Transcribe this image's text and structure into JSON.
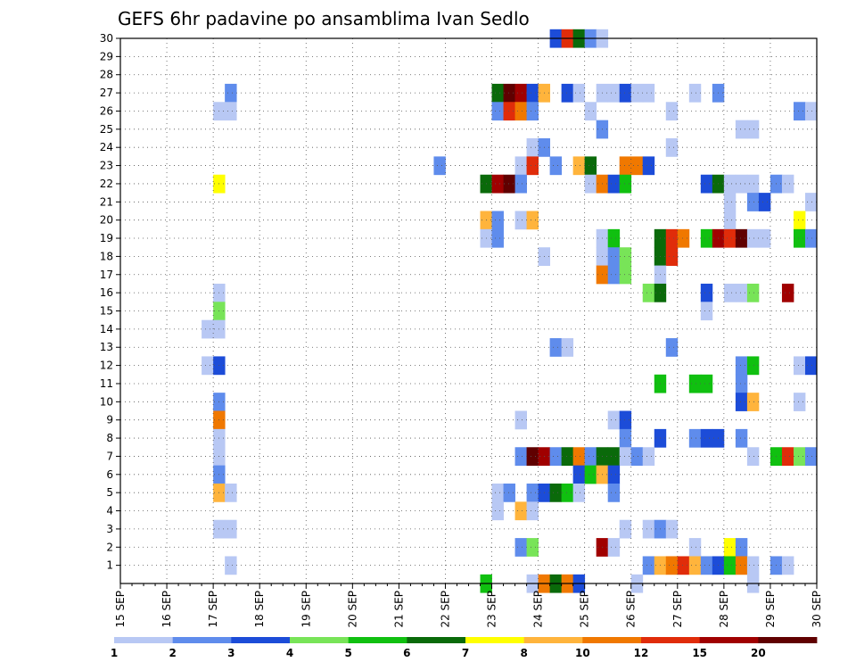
{
  "chart_data": {
    "type": "heatmap",
    "title": "GEFS 6hr padavine po ansamblima Ivan Sedlo",
    "xlabel": "",
    "ylabel": "",
    "x_ticks": [
      "15 SEP",
      "16 SEP",
      "17 SEP",
      "18 SEP",
      "19 SEP",
      "20 SEP",
      "21 SEP",
      "22 SEP",
      "23 SEP",
      "24 SEP",
      "25 SEP",
      "26 SEP",
      "27 SEP",
      "28 SEP",
      "29 SEP",
      "30 SEP"
    ],
    "y_ticks": [
      1,
      2,
      3,
      4,
      5,
      6,
      7,
      8,
      9,
      10,
      11,
      12,
      13,
      14,
      15,
      16,
      17,
      18,
      19,
      20,
      21,
      22,
      23,
      24,
      25,
      26,
      27,
      28,
      29,
      30
    ],
    "ylim": [
      0,
      30
    ],
    "grid": true,
    "colorbar": {
      "labels": [
        "1",
        "2",
        "3",
        "4",
        "5",
        "6",
        "7",
        "8",
        "10",
        "12",
        "15",
        "20"
      ],
      "colors": [
        "#b8c8f4",
        "#5f8cec",
        "#1c4cd8",
        "#78e458",
        "#10c010",
        "#0a6a0a",
        "#ffff00",
        "#ffb43c",
        "#f07800",
        "#e02c0a",
        "#a00000",
        "#600000"
      ]
    },
    "cells": [
      [
        30,
        37,
        2
      ],
      [
        30,
        38,
        9
      ],
      [
        30,
        39,
        5
      ],
      [
        30,
        40,
        1
      ],
      [
        30,
        41,
        0
      ],
      [
        27,
        9,
        1
      ],
      [
        27,
        32,
        5
      ],
      [
        27,
        33,
        11
      ],
      [
        27,
        34,
        10
      ],
      [
        27,
        35,
        2
      ],
      [
        27,
        36,
        7
      ],
      [
        27,
        38,
        2
      ],
      [
        27,
        39,
        0
      ],
      [
        27,
        41,
        0
      ],
      [
        27,
        42,
        0
      ],
      [
        27,
        43,
        2
      ],
      [
        27,
        44,
        0
      ],
      [
        27,
        45,
        0
      ],
      [
        27,
        49,
        0
      ],
      [
        27,
        51,
        1
      ],
      [
        26,
        8,
        0
      ],
      [
        26,
        9,
        0
      ],
      [
        26,
        32,
        1
      ],
      [
        26,
        33,
        9
      ],
      [
        26,
        34,
        8
      ],
      [
        26,
        35,
        1
      ],
      [
        26,
        40,
        0
      ],
      [
        26,
        47,
        0
      ],
      [
        26,
        58,
        1
      ],
      [
        26,
        59,
        0
      ],
      [
        25,
        41,
        1
      ],
      [
        25,
        53,
        0
      ],
      [
        25,
        54,
        0
      ],
      [
        24,
        35,
        0
      ],
      [
        24,
        36,
        1
      ],
      [
        24,
        47,
        0
      ],
      [
        23,
        27,
        1
      ],
      [
        23,
        34,
        0
      ],
      [
        23,
        35,
        9
      ],
      [
        23,
        37,
        1
      ],
      [
        23,
        39,
        7
      ],
      [
        23,
        40,
        5
      ],
      [
        23,
        43,
        8
      ],
      [
        23,
        44,
        8
      ],
      [
        23,
        45,
        2
      ],
      [
        22,
        8,
        6
      ],
      [
        22,
        31,
        5
      ],
      [
        22,
        32,
        10
      ],
      [
        22,
        33,
        11
      ],
      [
        22,
        34,
        1
      ],
      [
        22,
        40,
        0
      ],
      [
        22,
        41,
        8
      ],
      [
        22,
        42,
        2
      ],
      [
        22,
        43,
        4
      ],
      [
        22,
        50,
        2
      ],
      [
        22,
        51,
        5
      ],
      [
        22,
        52,
        0
      ],
      [
        22,
        53,
        0
      ],
      [
        22,
        54,
        0
      ],
      [
        22,
        56,
        1
      ],
      [
        22,
        57,
        0
      ],
      [
        21,
        52,
        0
      ],
      [
        21,
        54,
        1
      ],
      [
        21,
        55,
        2
      ],
      [
        21,
        59,
        0
      ],
      [
        20,
        31,
        7
      ],
      [
        20,
        32,
        1
      ],
      [
        20,
        34,
        0
      ],
      [
        20,
        35,
        7
      ],
      [
        20,
        52,
        0
      ],
      [
        20,
        58,
        6
      ],
      [
        19,
        31,
        0
      ],
      [
        19,
        32,
        1
      ],
      [
        19,
        41,
        0
      ],
      [
        19,
        42,
        4
      ],
      [
        19,
        46,
        5
      ],
      [
        19,
        47,
        9
      ],
      [
        19,
        48,
        8
      ],
      [
        19,
        50,
        4
      ],
      [
        19,
        51,
        10
      ],
      [
        19,
        52,
        9
      ],
      [
        19,
        53,
        11
      ],
      [
        19,
        54,
        0
      ],
      [
        19,
        55,
        0
      ],
      [
        19,
        58,
        4
      ],
      [
        19,
        59,
        1
      ],
      [
        18,
        36,
        0
      ],
      [
        18,
        41,
        0
      ],
      [
        18,
        42,
        1
      ],
      [
        18,
        43,
        3
      ],
      [
        18,
        46,
        5
      ],
      [
        18,
        47,
        9
      ],
      [
        17,
        41,
        8
      ],
      [
        17,
        42,
        1
      ],
      [
        17,
        43,
        3
      ],
      [
        17,
        46,
        0
      ],
      [
        16,
        8,
        0
      ],
      [
        16,
        45,
        3
      ],
      [
        16,
        46,
        5
      ],
      [
        16,
        50,
        2
      ],
      [
        16,
        52,
        0
      ],
      [
        16,
        53,
        0
      ],
      [
        16,
        54,
        3
      ],
      [
        16,
        57,
        10
      ],
      [
        15,
        8,
        3
      ],
      [
        15,
        50,
        0
      ],
      [
        14,
        7,
        0
      ],
      [
        14,
        8,
        0
      ],
      [
        13,
        37,
        1
      ],
      [
        13,
        38,
        0
      ],
      [
        13,
        47,
        1
      ],
      [
        12,
        7,
        0
      ],
      [
        12,
        8,
        2
      ],
      [
        12,
        53,
        1
      ],
      [
        12,
        54,
        4
      ],
      [
        12,
        58,
        0
      ],
      [
        12,
        59,
        2
      ],
      [
        11,
        46,
        4
      ],
      [
        11,
        49,
        4
      ],
      [
        11,
        50,
        4
      ],
      [
        11,
        53,
        1
      ],
      [
        10,
        8,
        1
      ],
      [
        10,
        53,
        2
      ],
      [
        10,
        54,
        7
      ],
      [
        10,
        58,
        0
      ],
      [
        9,
        8,
        8
      ],
      [
        9,
        34,
        0
      ],
      [
        9,
        42,
        0
      ],
      [
        9,
        43,
        2
      ],
      [
        8,
        8,
        0
      ],
      [
        8,
        43,
        1
      ],
      [
        8,
        46,
        2
      ],
      [
        8,
        49,
        1
      ],
      [
        8,
        50,
        2
      ],
      [
        8,
        51,
        2
      ],
      [
        8,
        53,
        1
      ],
      [
        7,
        8,
        0
      ],
      [
        7,
        34,
        1
      ],
      [
        7,
        35,
        11
      ],
      [
        7,
        36,
        10
      ],
      [
        7,
        37,
        1
      ],
      [
        7,
        38,
        5
      ],
      [
        7,
        39,
        8
      ],
      [
        7,
        40,
        1
      ],
      [
        7,
        41,
        5
      ],
      [
        7,
        42,
        5
      ],
      [
        7,
        43,
        0
      ],
      [
        7,
        44,
        1
      ],
      [
        7,
        45,
        0
      ],
      [
        7,
        54,
        0
      ],
      [
        7,
        56,
        4
      ],
      [
        7,
        57,
        9
      ],
      [
        7,
        58,
        3
      ],
      [
        7,
        59,
        1
      ],
      [
        6,
        8,
        1
      ],
      [
        6,
        39,
        2
      ],
      [
        6,
        40,
        4
      ],
      [
        6,
        41,
        7
      ],
      [
        6,
        42,
        2
      ],
      [
        5,
        8,
        7
      ],
      [
        5,
        9,
        0
      ],
      [
        5,
        32,
        0
      ],
      [
        5,
        33,
        1
      ],
      [
        5,
        35,
        1
      ],
      [
        5,
        36,
        2
      ],
      [
        5,
        37,
        5
      ],
      [
        5,
        38,
        4
      ],
      [
        5,
        39,
        0
      ],
      [
        5,
        42,
        1
      ],
      [
        4,
        32,
        0
      ],
      [
        4,
        34,
        7
      ],
      [
        4,
        35,
        0
      ],
      [
        3,
        8,
        0
      ],
      [
        3,
        9,
        0
      ],
      [
        3,
        43,
        0
      ],
      [
        3,
        45,
        0
      ],
      [
        3,
        46,
        1
      ],
      [
        3,
        47,
        0
      ],
      [
        2,
        34,
        1
      ],
      [
        2,
        35,
        3
      ],
      [
        2,
        41,
        10
      ],
      [
        2,
        42,
        0
      ],
      [
        2,
        49,
        0
      ],
      [
        2,
        52,
        6
      ],
      [
        2,
        53,
        1
      ],
      [
        1,
        9,
        0
      ],
      [
        1,
        45,
        1
      ],
      [
        1,
        46,
        7
      ],
      [
        1,
        47,
        8
      ],
      [
        1,
        48,
        9
      ],
      [
        1,
        49,
        7
      ],
      [
        1,
        50,
        1
      ],
      [
        1,
        51,
        2
      ],
      [
        1,
        52,
        4
      ],
      [
        1,
        53,
        8
      ],
      [
        1,
        54,
        0
      ],
      [
        1,
        56,
        1
      ],
      [
        1,
        57,
        0
      ],
      [
        0,
        31,
        4
      ],
      [
        0,
        35,
        0
      ],
      [
        0,
        36,
        8
      ],
      [
        0,
        37,
        5
      ],
      [
        0,
        38,
        8
      ],
      [
        0,
        39,
        2
      ],
      [
        0,
        44,
        0
      ],
      [
        0,
        54,
        0
      ]
    ]
  }
}
